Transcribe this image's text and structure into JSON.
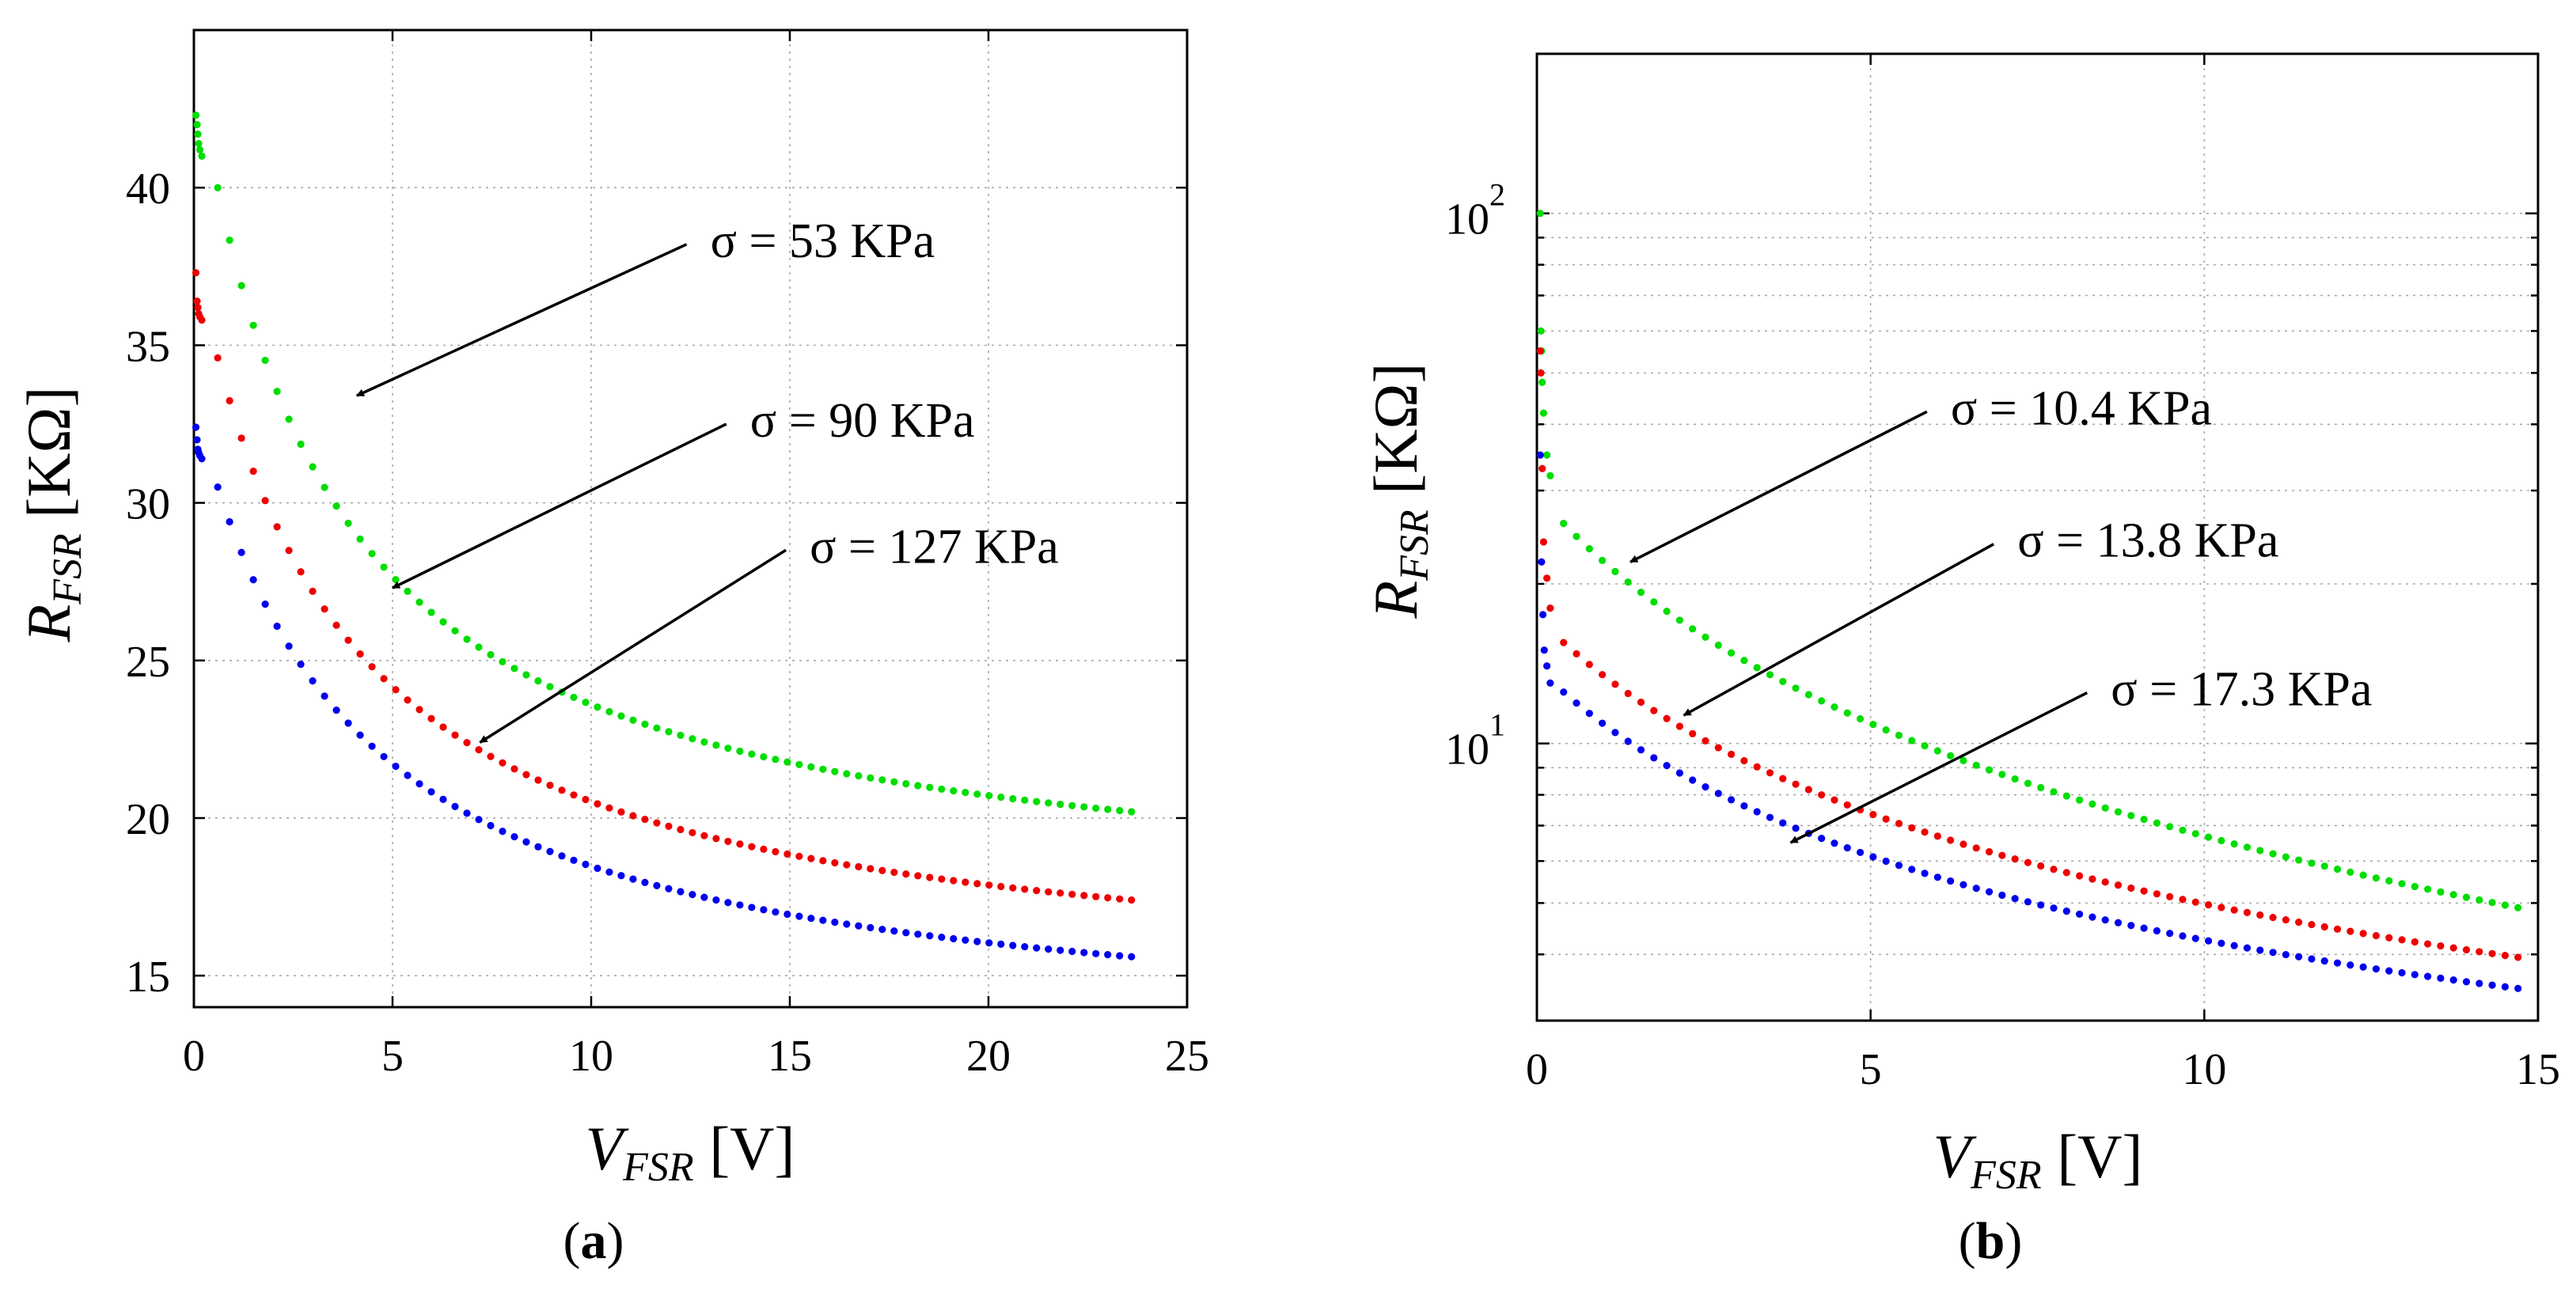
{
  "figure": {
    "panel_labels": [
      {
        "pre": "(",
        "letter": "a",
        "post": ")"
      },
      {
        "pre": "(",
        "letter": "b",
        "post": ")"
      }
    ]
  },
  "chart_data": [
    {
      "type": "scatter",
      "panel": "a",
      "xlabel": {
        "main": "V",
        "sub": "FSR",
        "unit": " [V]"
      },
      "ylabel": {
        "main": "R",
        "sub": "FSR",
        "unit": " [KΩ]"
      },
      "xlim": [
        0,
        25
      ],
      "ylim": [
        14,
        45
      ],
      "yscale": "linear",
      "xticks": [
        0,
        5,
        10,
        15,
        20,
        25
      ],
      "xtick_labels": [
        "0",
        "5",
        "10",
        "15",
        "20",
        "25"
      ],
      "yticks": [
        15,
        20,
        25,
        30,
        35,
        40
      ],
      "ytick_labels": [
        "15",
        "20",
        "25",
        "30",
        "35",
        "40"
      ],
      "grid": true,
      "series": [
        {
          "name": "σ = 53 KPa",
          "color": "#00dd00",
          "x_start": 0.6,
          "x_end": 23.6,
          "y_start": 40.0,
          "y_end": 20.2,
          "shape_k": 0.26,
          "n_points": 78,
          "initial_points": [
            [
              0.05,
              42.3
            ],
            [
              0.08,
              42.0
            ],
            [
              0.1,
              41.7
            ],
            [
              0.12,
              41.4
            ],
            [
              0.15,
              41.2
            ],
            [
              0.2,
              41.0
            ]
          ]
        },
        {
          "name": "σ = 90 KPa",
          "color": "#ee0000",
          "x_start": 0.6,
          "x_end": 23.6,
          "y_start": 34.6,
          "y_end": 17.4,
          "shape_k": 0.24,
          "n_points": 78,
          "initial_points": [
            [
              0.05,
              37.3
            ],
            [
              0.08,
              36.4
            ],
            [
              0.1,
              36.2
            ],
            [
              0.12,
              36.0
            ],
            [
              0.15,
              35.9
            ],
            [
              0.2,
              35.8
            ]
          ]
        },
        {
          "name": "σ = 127 KPa",
          "color": "#0000ee",
          "x_start": 0.6,
          "x_end": 23.6,
          "y_start": 30.5,
          "y_end": 15.6,
          "shape_k": 0.22,
          "n_points": 78,
          "initial_points": [
            [
              0.05,
              32.4
            ],
            [
              0.08,
              32.0
            ],
            [
              0.1,
              31.7
            ],
            [
              0.12,
              31.6
            ],
            [
              0.15,
              31.5
            ],
            [
              0.2,
              31.4
            ]
          ]
        }
      ],
      "annotations": [
        {
          "text_pre": "σ = ",
          "text_value": "53 KPa",
          "text_at": [
            13.0,
            37.8
          ],
          "arrow_to": [
            4.1,
            33.4
          ]
        },
        {
          "text_pre": "σ = ",
          "text_value": "90 KPa",
          "text_at": [
            14.0,
            32.1
          ],
          "arrow_to": [
            5.0,
            27.3
          ]
        },
        {
          "text_pre": "σ = ",
          "text_value": "127 KPa",
          "text_at": [
            15.5,
            28.1
          ],
          "arrow_to": [
            7.2,
            22.4
          ]
        }
      ]
    },
    {
      "type": "scatter",
      "panel": "b",
      "xlabel": {
        "main": "V",
        "sub": "FSR",
        "unit": " [V]"
      },
      "ylabel": {
        "main": "R",
        "sub": "FSR",
        "unit": " [KΩ]"
      },
      "xlim": [
        0,
        15
      ],
      "ylim": [
        3,
        200
      ],
      "yscale": "log",
      "xticks": [
        0,
        5,
        10,
        15
      ],
      "xtick_labels": [
        "0",
        "5",
        "10",
        "15"
      ],
      "ytick_minor": [
        4,
        5,
        6,
        7,
        8,
        9,
        10,
        20,
        30,
        40,
        50,
        60,
        70,
        80,
        90,
        100
      ],
      "ytick_major": [
        {
          "value": 10,
          "base": "10",
          "exp": "1"
        },
        {
          "value": 100,
          "base": "10",
          "exp": "2"
        }
      ],
      "grid": true,
      "series": [
        {
          "name": "σ = 10.4 KPa",
          "color": "#00dd00",
          "x_start": 0.4,
          "x_end": 14.7,
          "y_start": 26.0,
          "y_end": 4.9,
          "shape_k": 0.3,
          "n_points": 75,
          "initial_points": [
            [
              0.05,
              100.0
            ],
            [
              0.06,
              60.0
            ],
            [
              0.07,
              55.0
            ],
            [
              0.08,
              48.0
            ],
            [
              0.1,
              42.0
            ],
            [
              0.15,
              35.0
            ],
            [
              0.2,
              32.0
            ]
          ]
        },
        {
          "name": "σ = 13.8 KPa",
          "color": "#ee0000",
          "x_start": 0.4,
          "x_end": 14.7,
          "y_start": 15.5,
          "y_end": 3.95,
          "shape_k": 0.28,
          "n_points": 75,
          "initial_points": [
            [
              0.05,
              55.0
            ],
            [
              0.06,
              50.0
            ],
            [
              0.08,
              33.0
            ],
            [
              0.1,
              24.0
            ],
            [
              0.15,
              20.5
            ],
            [
              0.2,
              18.0
            ]
          ]
        },
        {
          "name": "σ = 17.3 KPa",
          "color": "#0000ee",
          "x_start": 0.4,
          "x_end": 14.7,
          "y_start": 12.5,
          "y_end": 3.45,
          "shape_k": 0.28,
          "n_points": 75,
          "initial_points": [
            [
              0.05,
              35.0
            ],
            [
              0.07,
              22.0
            ],
            [
              0.09,
              17.5
            ],
            [
              0.11,
              15.0
            ],
            [
              0.15,
              14.0
            ],
            [
              0.2,
              13.0
            ]
          ]
        }
      ],
      "annotations": [
        {
          "text_pre": "σ = ",
          "text_value": "10.4 KPa",
          "text_at": [
            6.2,
            40.0
          ],
          "arrow_to": [
            1.4,
            22.0
          ]
        },
        {
          "text_pre": "σ = ",
          "text_value": "13.8 KPa",
          "text_at": [
            7.2,
            22.5
          ],
          "arrow_to": [
            2.2,
            11.3
          ]
        },
        {
          "text_pre": "σ = ",
          "text_value": "17.3 KPa",
          "text_at": [
            8.6,
            11.8
          ],
          "arrow_to": [
            3.8,
            6.5
          ]
        }
      ]
    }
  ]
}
